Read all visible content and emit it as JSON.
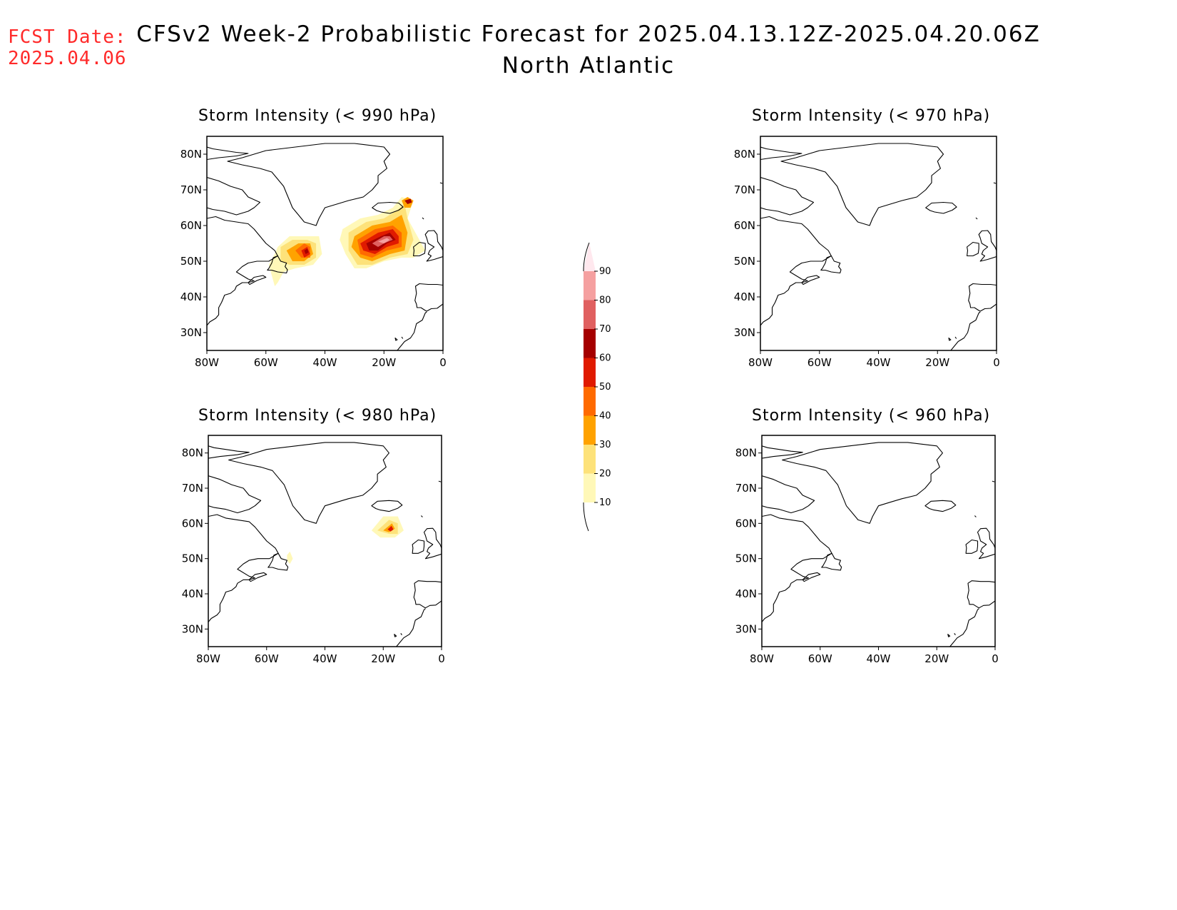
{
  "forecast_date": {
    "label": "FCST Date:",
    "value": "2025.04.06"
  },
  "title": {
    "line1": "CFSv2 Week-2 Probabilistic Forecast for 2025.04.13.12Z-2025.04.20.06Z",
    "line2": "North Atlantic"
  },
  "axes": {
    "lat_labels": [
      "80N",
      "70N",
      "60N",
      "50N",
      "40N",
      "30N"
    ],
    "lon_labels": [
      "80W",
      "60W",
      "40W",
      "20W",
      "0"
    ],
    "lat_values": [
      80,
      70,
      60,
      50,
      40,
      30
    ],
    "lon_values": [
      -80,
      -60,
      -40,
      -20,
      0
    ],
    "lat_range": [
      25,
      85
    ],
    "lon_range": [
      -80,
      0
    ]
  },
  "colorbar": {
    "levels": [
      "10",
      "20",
      "30",
      "40",
      "50",
      "60",
      "70",
      "80",
      "90"
    ],
    "colors": [
      "#fff8b8",
      "#fde27a",
      "#ffa200",
      "#ff6a00",
      "#e01a00",
      "#a50000",
      "#e06060",
      "#f5a0a0",
      "#ffe8ee"
    ]
  },
  "panels": [
    {
      "title": "Storm Intensity (< 990 hPa)",
      "threshold_hPa": 990,
      "probability_regions": [
        {
          "level": 10,
          "polygon": [
            [
              -56,
              54
            ],
            [
              -52,
              57
            ],
            [
              -47,
              57
            ],
            [
              -42,
              57
            ],
            [
              -41,
              52
            ],
            [
              -44,
              49
            ],
            [
              -50,
              48
            ],
            [
              -54,
              47
            ],
            [
              -56,
              44
            ],
            [
              -57,
              43
            ],
            [
              -58,
              46
            ],
            [
              -59,
              49
            ],
            [
              -57,
              52
            ]
          ]
        },
        {
          "level": 20,
          "polygon": [
            [
              -55,
              54
            ],
            [
              -51,
              56
            ],
            [
              -46,
              56
            ],
            [
              -43,
              55
            ],
            [
              -43,
              51
            ],
            [
              -47,
              49
            ],
            [
              -52,
              49
            ],
            [
              -55,
              50
            ]
          ]
        },
        {
          "level": 30,
          "polygon": [
            [
              -53,
              53
            ],
            [
              -49,
              55
            ],
            [
              -45,
              55
            ],
            [
              -44,
              52
            ],
            [
              -47,
              50
            ],
            [
              -51,
              50
            ]
          ]
        },
        {
          "level": 40,
          "polygon": [
            [
              -50,
              53
            ],
            [
              -47,
              55
            ],
            [
              -45,
              54
            ],
            [
              -45,
              51
            ],
            [
              -48,
              51
            ]
          ]
        },
        {
          "level": 50,
          "polygon": [
            [
              -48,
              53
            ],
            [
              -46,
              54
            ],
            [
              -45,
              52
            ],
            [
              -47,
              51
            ]
          ]
        },
        {
          "level": 60,
          "polygon": [
            [
              -47,
              53
            ],
            [
              -46,
              53.5
            ],
            [
              -45.5,
              52.5
            ],
            [
              -46.5,
              52
            ]
          ]
        },
        {
          "level": 10,
          "polygon": [
            [
              -34,
              59
            ],
            [
              -28,
              62
            ],
            [
              -22,
              63
            ],
            [
              -17,
              65
            ],
            [
              -14,
              68
            ],
            [
              -10,
              67
            ],
            [
              -12,
              62
            ],
            [
              -8,
              56
            ],
            [
              -6,
              53
            ],
            [
              -10,
              51
            ],
            [
              -14,
              51
            ],
            [
              -20,
              50
            ],
            [
              -26,
              48
            ],
            [
              -30,
              48
            ],
            [
              -33,
              52
            ],
            [
              -35,
              56
            ]
          ]
        },
        {
          "level": 20,
          "polygon": [
            [
              -32,
              58
            ],
            [
              -26,
              61
            ],
            [
              -20,
              62
            ],
            [
              -16,
              64
            ],
            [
              -13,
              66
            ],
            [
              -12,
              62
            ],
            [
              -10,
              56
            ],
            [
              -12,
              52
            ],
            [
              -18,
              51
            ],
            [
              -24,
              49
            ],
            [
              -29,
              49
            ],
            [
              -32,
              53
            ]
          ]
        },
        {
          "level": 30,
          "polygon": [
            [
              -30,
              57
            ],
            [
              -24,
              60
            ],
            [
              -18,
              61
            ],
            [
              -14,
              63
            ],
            [
              -12,
              58
            ],
            [
              -13,
              53
            ],
            [
              -18,
              52
            ],
            [
              -24,
              50
            ],
            [
              -28,
              51
            ],
            [
              -31,
              54
            ]
          ]
        },
        {
          "level": 40,
          "polygon": [
            [
              -29,
              56
            ],
            [
              -23,
              59
            ],
            [
              -17,
              60
            ],
            [
              -14,
              58
            ],
            [
              -14,
              54
            ],
            [
              -19,
              53
            ],
            [
              -24,
              51
            ],
            [
              -28,
              52
            ]
          ]
        },
        {
          "level": 50,
          "polygon": [
            [
              -28,
              55
            ],
            [
              -22,
              58
            ],
            [
              -17,
              59
            ],
            [
              -15,
              57
            ],
            [
              -15,
              55
            ],
            [
              -19,
              54
            ],
            [
              -23,
              52
            ],
            [
              -27,
              53
            ]
          ]
        },
        {
          "level": 60,
          "polygon": [
            [
              -26,
              55
            ],
            [
              -21,
              57
            ],
            [
              -18,
              58
            ],
            [
              -16,
              56
            ],
            [
              -19,
              55
            ],
            [
              -22,
              53
            ],
            [
              -25,
              53
            ]
          ]
        },
        {
          "level": 70,
          "polygon": [
            [
              -24,
              55
            ],
            [
              -20,
              57
            ],
            [
              -18,
              57
            ],
            [
              -17,
              56
            ],
            [
              -20,
              55
            ],
            [
              -22,
              54
            ]
          ]
        },
        {
          "level": 80,
          "polygon": [
            [
              -22,
              55.5
            ],
            [
              -19,
              56.5
            ],
            [
              -18,
              56
            ],
            [
              -20,
              55
            ]
          ]
        },
        {
          "level": 30,
          "polygon": [
            [
              -14,
              67
            ],
            [
              -12,
              68
            ],
            [
              -10,
              67
            ],
            [
              -11,
              65
            ],
            [
              -13,
              65
            ]
          ]
        },
        {
          "level": 60,
          "polygon": [
            [
              -13,
              67
            ],
            [
              -11,
              67.5
            ],
            [
              -10.5,
              66.5
            ],
            [
              -12,
              66
            ]
          ]
        }
      ]
    },
    {
      "title": "Storm Intensity (< 970 hPa)",
      "threshold_hPa": 970,
      "probability_regions": []
    },
    {
      "title": "Storm Intensity (< 980 hPa)",
      "threshold_hPa": 980,
      "probability_regions": [
        {
          "level": 10,
          "polygon": [
            [
              -53,
              51
            ],
            [
              -52,
              52
            ],
            [
              -51,
              50
            ],
            [
              -52,
              48.5
            ],
            [
              -53,
              49.5
            ]
          ]
        },
        {
          "level": 10,
          "polygon": [
            [
              -24,
              58
            ],
            [
              -20,
              62
            ],
            [
              -15,
              62
            ],
            [
              -13,
              58
            ],
            [
              -16,
              56
            ],
            [
              -21,
              56
            ]
          ]
        },
        {
          "level": 20,
          "polygon": [
            [
              -22,
              58
            ],
            [
              -18,
              61
            ],
            [
              -15,
              60
            ],
            [
              -15,
              57
            ],
            [
              -18,
              57
            ]
          ]
        },
        {
          "level": 30,
          "polygon": [
            [
              -20,
              58
            ],
            [
              -17,
              60
            ],
            [
              -16,
              58.5
            ],
            [
              -18,
              57.5
            ]
          ]
        },
        {
          "level": 50,
          "polygon": [
            [
              -18.5,
              58.3
            ],
            [
              -17.2,
              59.3
            ],
            [
              -16.5,
              58.3
            ],
            [
              -17.5,
              57.7
            ]
          ]
        }
      ]
    },
    {
      "title": "Storm Intensity (< 960 hPa)",
      "threshold_hPa": 960,
      "probability_regions": []
    }
  ]
}
